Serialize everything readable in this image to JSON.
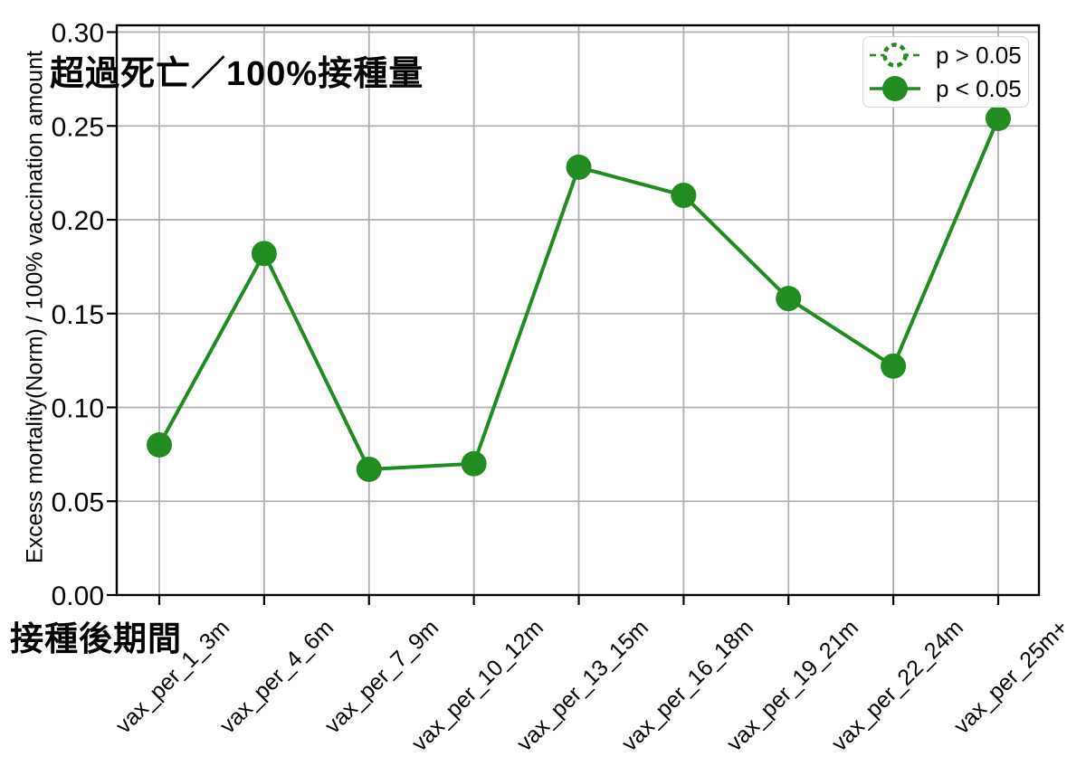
{
  "chart_data": {
    "type": "line",
    "title": "超過死亡／100%接種量",
    "xlabel": "接種後期間",
    "ylabel": "Excess mortality(Norm) / 100% vaccination amount",
    "categories": [
      "vax_per_1_3m",
      "vax_per_4_6m",
      "vax_per_7_9m",
      "vax_per_10_12m",
      "vax_per_13_15m",
      "vax_per_16_18m",
      "vax_per_19_21m",
      "vax_per_22_24m",
      "vax_per_25m+"
    ],
    "series": [
      {
        "name": "p > 0.05",
        "marker": "open-circle-dashed",
        "line": "dashed",
        "values": []
      },
      {
        "name": "p < 0.05",
        "marker": "filled-circle",
        "line": "solid",
        "values": [
          0.08,
          0.182,
          0.067,
          0.07,
          0.228,
          0.213,
          0.158,
          0.122,
          0.254
        ]
      }
    ],
    "ylim": [
      0.0,
      0.304
    ],
    "yticks": [
      0.0,
      0.05,
      0.1,
      0.15,
      0.2,
      0.25,
      0.3
    ],
    "ytick_format": "two-decimals",
    "xtick_rotation_deg": 45,
    "grid": true,
    "legend_position": "upper right",
    "colors": {
      "series": "#228B22",
      "grid": "#b0b0b0",
      "spine": "#000000",
      "text": "#000000",
      "legend_border": "#d5d5d5",
      "background": "#ffffff"
    }
  }
}
